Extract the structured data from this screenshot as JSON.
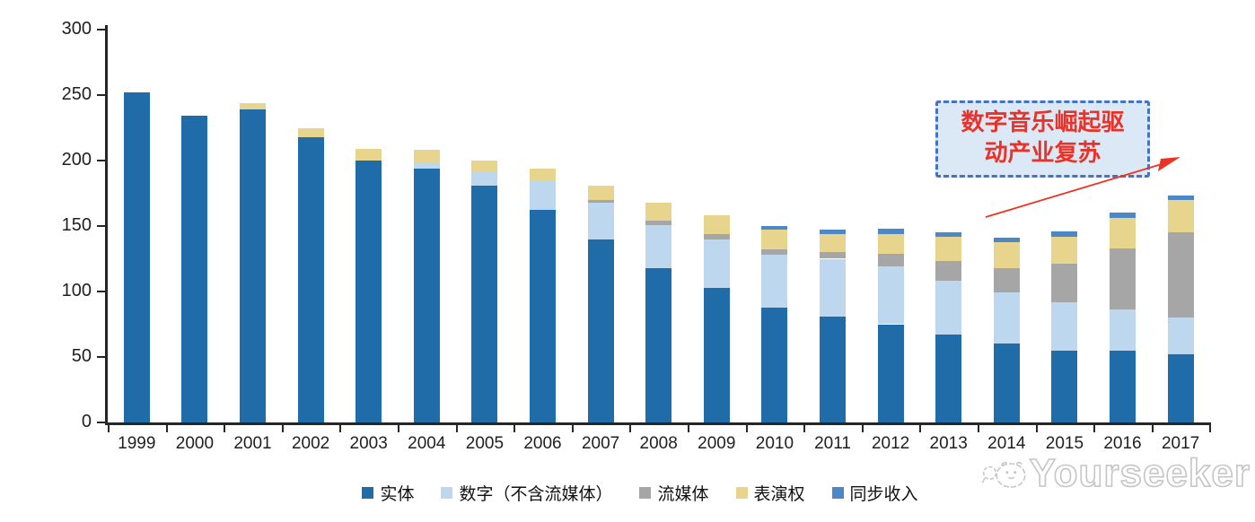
{
  "chart_data": {
    "type": "bar",
    "stacked": true,
    "title": "",
    "xlabel": "",
    "ylabel": "",
    "categories": [
      "1999",
      "2000",
      "2001",
      "2002",
      "2003",
      "2004",
      "2005",
      "2006",
      "2007",
      "2008",
      "2009",
      "2010",
      "2011",
      "2012",
      "2013",
      "2014",
      "2015",
      "2016",
      "2017"
    ],
    "series": [
      {
        "name": "实体",
        "color": "#1f6ca8",
        "values": [
          252,
          234,
          239,
          218,
          200,
          194,
          181,
          162,
          140,
          118,
          103,
          88,
          81,
          75,
          67,
          60,
          55,
          55,
          52
        ]
      },
      {
        "name": "数字（不含流媒体）",
        "color": "#bdd7ee",
        "values": [
          0,
          0,
          0,
          0,
          0,
          4,
          10,
          22,
          28,
          33,
          37,
          40,
          44,
          44,
          41,
          39,
          37,
          31,
          28
        ]
      },
      {
        "name": "流媒体",
        "color": "#a6a6a6",
        "values": [
          0,
          0,
          0,
          0,
          0,
          0,
          0,
          0,
          2,
          3,
          4,
          4,
          5,
          10,
          15,
          19,
          29,
          47,
          65
        ]
      },
      {
        "name": "表演权",
        "color": "#e7d58d",
        "values": [
          0,
          0,
          5,
          7,
          9,
          10,
          9,
          10,
          11,
          14,
          14,
          15,
          14,
          15,
          19,
          20,
          21,
          23,
          25
        ]
      },
      {
        "name": "同步收入",
        "color": "#4e87c5",
        "values": [
          0,
          0,
          0,
          0,
          0,
          0,
          0,
          0,
          0,
          0,
          0,
          3,
          3,
          4,
          3,
          3,
          4,
          4,
          3
        ]
      }
    ],
    "ylim": [
      0,
      300
    ],
    "yticks": [
      0,
      50,
      100,
      150,
      200,
      250,
      300
    ],
    "grid": false,
    "legend_position": "bottom"
  },
  "annotation": {
    "line1": "数字音乐崛起驱",
    "line2": "动产业复苏",
    "arrow_color": "#ec3323",
    "box_border_color": "#4472c4",
    "box_fill_color": "#dbe8f6",
    "text_color": "#e8332a"
  },
  "watermark": {
    "text": "Yourseeker"
  }
}
